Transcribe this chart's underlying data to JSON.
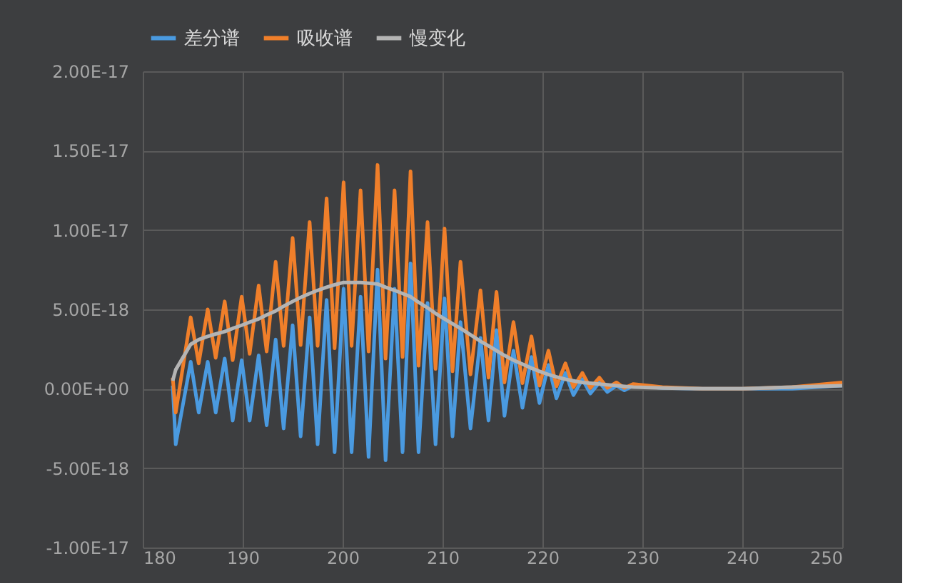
{
  "chart_data": {
    "type": "line",
    "legend": "top",
    "grid": true,
    "marker": "none",
    "line_style": "solid",
    "xlim": [
      180,
      250
    ],
    "xticks": [
      180,
      190,
      200,
      210,
      220,
      230,
      240,
      250
    ],
    "ylim": [
      -1e-17,
      2e-17
    ],
    "yticks": [
      {
        "value": -1e-17,
        "label": "-1.00E-17"
      },
      {
        "value": -5e-18,
        "label": "-5.00E-18"
      },
      {
        "value": 0,
        "label": "0.00E+00"
      },
      {
        "value": 5e-18,
        "label": "5.00E-18"
      },
      {
        "value": 1e-17,
        "label": "1.00E-17"
      },
      {
        "value": 1.5e-17,
        "label": "1.50E-17"
      },
      {
        "value": 2e-17,
        "label": "2.00E-17"
      }
    ],
    "x": [
      183.0,
      183.3,
      184.8,
      185.6,
      186.5,
      187.3,
      188.2,
      189.0,
      189.9,
      190.7,
      191.6,
      192.4,
      193.3,
      194.1,
      195.0,
      195.8,
      196.7,
      197.5,
      198.4,
      199.2,
      200.1,
      200.9,
      201.8,
      202.6,
      203.5,
      204.3,
      205.2,
      206.0,
      206.8,
      207.6,
      208.5,
      209.3,
      210.2,
      211.0,
      211.8,
      212.8,
      213.8,
      214.6,
      215.4,
      216.2,
      217.1,
      218.0,
      218.9,
      219.7,
      220.6,
      221.4,
      222.3,
      223.1,
      224.0,
      224.8,
      225.7,
      226.5,
      227.4,
      228.2,
      229.1,
      232,
      236,
      240,
      245,
      250
    ],
    "series": [
      {
        "name": "差分谱",
        "color": "#4a9ae0",
        "values": [
          2e-19,
          -3.5e-18,
          1.7e-18,
          -1.5e-18,
          1.7e-18,
          -1.5e-18,
          1.9e-18,
          -2e-18,
          1.8e-18,
          -2e-18,
          2.1e-18,
          -2.3e-18,
          3.1e-18,
          -2.5e-18,
          4e-18,
          -3e-18,
          4.5e-18,
          -3.5e-18,
          5.6e-18,
          -4e-18,
          6.3e-18,
          -4e-18,
          5.8e-18,
          -4.3e-18,
          7.5e-18,
          -4.5e-18,
          6.3e-18,
          -4e-18,
          7.9e-18,
          -4e-18,
          5.4e-18,
          -3.5e-18,
          5.7e-18,
          -3e-18,
          4.2e-18,
          -2.5e-18,
          3.2e-18,
          -2e-18,
          3.7e-18,
          -1.7e-18,
          2.4e-18,
          -1.2e-18,
          2e-18,
          -9e-19,
          1.5e-18,
          -6e-19,
          1e-18,
          -4e-19,
          6e-19,
          -3e-19,
          4e-19,
          -2e-19,
          2e-19,
          -1e-19,
          2e-19,
          5e-20,
          0,
          0,
          0,
          2e-19
        ]
      },
      {
        "name": "吸收谱",
        "color": "#f07f2a",
        "values": [
          7e-19,
          -1.5e-18,
          4.5e-18,
          1.6e-18,
          5e-18,
          1.95e-18,
          5.5e-18,
          1.8e-18,
          5.8e-18,
          2.2e-18,
          6.5e-18,
          2.35e-18,
          8e-18,
          2.7e-18,
          9.5e-18,
          2.75e-18,
          1.05e-17,
          2.7e-18,
          1.2e-17,
          2.55e-18,
          1.3e-17,
          2.7e-18,
          1.25e-17,
          2.35e-18,
          1.41e-17,
          1.9e-18,
          1.25e-17,
          2e-18,
          1.37e-17,
          1.45e-18,
          1.05e-17,
          1.25e-18,
          1.01e-17,
          1.1e-18,
          8e-18,
          9e-19,
          6.2e-18,
          7e-19,
          6.1e-18,
          4e-19,
          4.2e-18,
          3.5e-19,
          3.3e-18,
          2e-19,
          2.4e-18,
          1.5e-19,
          1.6e-18,
          1e-19,
          1e-18,
          5e-20,
          7e-19,
          5e-20,
          4e-19,
          5e-20,
          3e-19,
          1e-19,
          0,
          0,
          1e-19,
          4e-19
        ]
      },
      {
        "name": "慢变化",
        "color": "#b4b4b4",
        "values": [
          5e-19,
          1.2e-18,
          2.8e-18,
          3.1e-18,
          3.3e-18,
          3.45e-18,
          3.6e-18,
          3.8e-18,
          4e-18,
          4.2e-18,
          4.4e-18,
          4.65e-18,
          4.9e-18,
          5.2e-18,
          5.5e-18,
          5.75e-18,
          6e-18,
          6.2e-18,
          6.4e-18,
          6.55e-18,
          6.7e-18,
          6.7e-18,
          6.7e-18,
          6.65e-18,
          6.6e-18,
          6.4e-18,
          6.2e-18,
          6e-18,
          5.8e-18,
          5.45e-18,
          5.1e-18,
          4.75e-18,
          4.4e-18,
          4.1e-18,
          3.8e-18,
          3.4e-18,
          3e-18,
          2.7e-18,
          2.4e-18,
          2.1e-18,
          1.8e-18,
          1.55e-18,
          1.3e-18,
          1.1e-18,
          9e-19,
          7.5e-19,
          6e-19,
          5e-19,
          4e-19,
          3.5e-19,
          3e-19,
          2.5e-19,
          2e-19,
          1.5e-19,
          1e-19,
          5e-20,
          0,
          0,
          1e-19,
          2e-19
        ]
      }
    ]
  }
}
